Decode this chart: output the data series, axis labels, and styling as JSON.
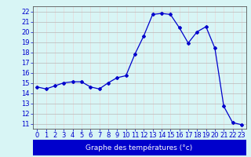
{
  "x": [
    0,
    1,
    2,
    3,
    4,
    5,
    6,
    7,
    8,
    9,
    10,
    11,
    12,
    13,
    14,
    15,
    16,
    17,
    18,
    19,
    20,
    21,
    22,
    23
  ],
  "y": [
    14.6,
    14.4,
    14.7,
    15.0,
    15.1,
    15.1,
    14.6,
    14.4,
    15.0,
    15.5,
    15.7,
    17.8,
    19.6,
    21.7,
    21.8,
    21.7,
    20.4,
    18.9,
    20.0,
    20.5,
    18.4,
    12.7,
    11.1,
    10.9
  ],
  "xlim": [
    -0.5,
    23.5
  ],
  "ylim": [
    10.5,
    22.5
  ],
  "yticks": [
    11,
    12,
    13,
    14,
    15,
    16,
    17,
    18,
    19,
    20,
    21,
    22
  ],
  "xticks": [
    0,
    1,
    2,
    3,
    4,
    5,
    6,
    7,
    8,
    9,
    10,
    11,
    12,
    13,
    14,
    15,
    16,
    17,
    18,
    19,
    20,
    21,
    22,
    23
  ],
  "xlabel": "Graphe des températures (°c)",
  "line_color": "#0000cc",
  "marker": "D",
  "marker_size": 2.0,
  "line_width": 0.9,
  "bg_color": "#d8f5f5",
  "grid_color": "#b8b8b8",
  "grid_color2": "#e8d8d8",
  "axis_color": "#555555",
  "tick_label_color": "#0000cc",
  "xlabel_bg": "#0000cc",
  "xlabel_fontsize": 6.5,
  "tick_fontsize": 6.0
}
